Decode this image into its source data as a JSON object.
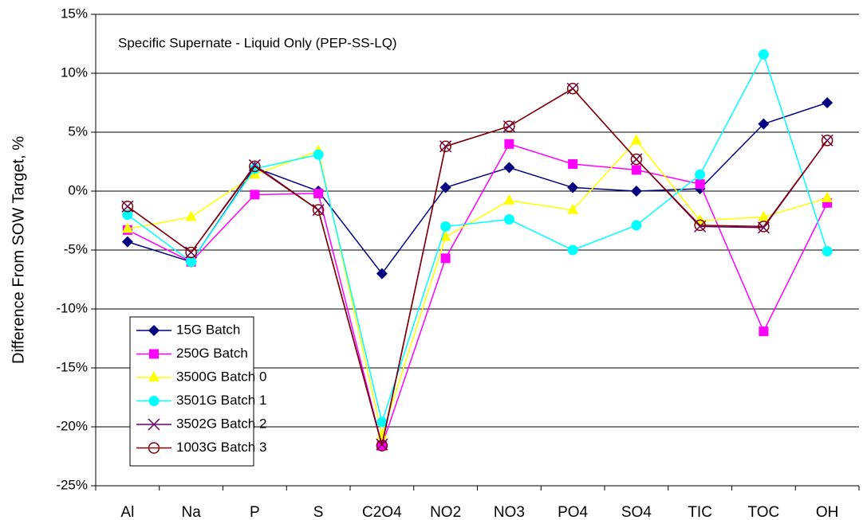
{
  "chart_data": {
    "type": "line",
    "annotation": "Specific Supernate - Liquid Only (PEP-SS-LQ)",
    "y_label": "Difference From SOW Target, %",
    "categories": [
      "Al",
      "Na",
      "P",
      "S",
      "C2O4",
      "NO2",
      "NO3",
      "PO4",
      "SO4",
      "TIC",
      "TOC",
      "OH"
    ],
    "series": [
      {
        "name": "15G Batch",
        "color": "#000080",
        "marker": "diamond",
        "values": [
          -4.3,
          -6.0,
          2.0,
          0.0,
          -7.0,
          0.3,
          2.0,
          0.3,
          0.0,
          0.2,
          5.7,
          7.5
        ]
      },
      {
        "name": "250G Batch",
        "color": "#ff00ff",
        "marker": "square",
        "values": [
          -3.3,
          -6.0,
          -0.3,
          -0.2,
          -21.6,
          -5.7,
          4.0,
          2.3,
          1.8,
          0.6,
          -11.9,
          -1.0
        ]
      },
      {
        "name": "3500G Batch 0",
        "color": "#ffff00",
        "marker": "triangle",
        "values": [
          -3.2,
          -2.2,
          1.4,
          3.4,
          -20.7,
          -3.9,
          -0.8,
          -1.6,
          4.3,
          -2.5,
          -2.2,
          -0.6
        ]
      },
      {
        "name": "3501G Batch 1",
        "color": "#00ffff",
        "marker": "circle",
        "values": [
          -2.0,
          -6.0,
          1.9,
          3.1,
          -19.6,
          -3.0,
          -2.4,
          -5.0,
          -2.9,
          1.4,
          11.6,
          -5.1
        ]
      },
      {
        "name": "3502G Batch 2",
        "color": "#660066",
        "marker": "x",
        "values": [
          -1.3,
          -5.2,
          2.2,
          -1.6,
          -21.5,
          3.8,
          5.5,
          8.7,
          2.7,
          -3.0,
          -3.1,
          4.3
        ]
      },
      {
        "name": "1003G Batch 3",
        "color": "#800000",
        "marker": "open-circle",
        "values": [
          -1.3,
          -5.2,
          2.1,
          -1.6,
          -21.6,
          3.8,
          5.5,
          8.7,
          2.7,
          -2.9,
          -3.0,
          4.3
        ]
      }
    ],
    "ylim": [
      -25,
      15
    ],
    "yticks": [
      {
        "value": -25,
        "label": "-25%"
      },
      {
        "value": -20,
        "label": "-20%"
      },
      {
        "value": -15,
        "label": "-15%"
      },
      {
        "value": -10,
        "label": "-10%"
      },
      {
        "value": -5,
        "label": "-5%"
      },
      {
        "value": 0,
        "label": "0%"
      },
      {
        "value": 5,
        "label": "5%"
      },
      {
        "value": 10,
        "label": "10%"
      },
      {
        "value": 15,
        "label": "15%"
      }
    ],
    "grid": true,
    "legend": "lower left"
  }
}
